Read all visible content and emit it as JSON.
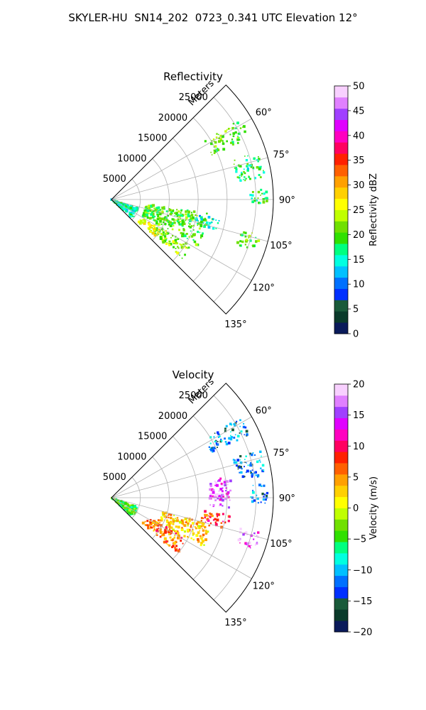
{
  "figure_title": "SKYLER-HU  SN14_202  0723_0.341 UTC Elevation 12°",
  "chart_data": [
    {
      "type": "heatmap",
      "projection": "polar-sector",
      "title": "Reflectivity",
      "radial_label": "Meters",
      "radial_ticks": [
        5000,
        10000,
        15000,
        20000,
        25000
      ],
      "r_max": 28000,
      "theta_range_deg": [
        45,
        135
      ],
      "theta_ticks_deg": [
        60,
        75,
        90,
        105,
        120,
        135
      ],
      "theta_tick_labels": [
        "60°",
        "75°",
        "90°",
        "105°",
        "120°",
        "135°"
      ],
      "radial_tick_labels": [
        "5000",
        "10000",
        "15000",
        "20000",
        "25000"
      ],
      "grid": true,
      "colorbar": {
        "label": "Reflectivity dBZ",
        "min": 0,
        "max": 50,
        "ticks": [
          0,
          5,
          10,
          15,
          20,
          25,
          30,
          35,
          40,
          45,
          50
        ],
        "tick_labels": [
          "0",
          "5",
          "10",
          "15",
          "20",
          "25",
          "30",
          "35",
          "40",
          "45",
          "50"
        ],
        "colors": [
          "#0a1a5a",
          "#0a3a2a",
          "#1a5a3a",
          "#0030ff",
          "#0070ff",
          "#00c0ff",
          "#00ffe0",
          "#00ff80",
          "#30e000",
          "#70e000",
          "#c0ff00",
          "#ffff00",
          "#ffd000",
          "#ffa000",
          "#ff6000",
          "#ff2000",
          "#ff0060",
          "#ff00c0",
          "#e000ff",
          "#a040ff",
          "#e080ff",
          "#f8d0ff"
        ]
      },
      "echo_regions": [
        {
          "theta_deg": [
            58,
            66
          ],
          "range_m": [
            19000,
            26500
          ],
          "value": 20
        },
        {
          "theta_deg": [
            72,
            82
          ],
          "range_m": [
            22000,
            27000
          ],
          "value": 17
        },
        {
          "theta_deg": [
            85,
            92
          ],
          "range_m": [
            24000,
            27000
          ],
          "value": 18
        },
        {
          "theta_deg": [
            103,
            110
          ],
          "range_m": [
            23000,
            26500
          ],
          "value": 20
        },
        {
          "theta_deg": [
            98,
            118
          ],
          "range_m": [
            6000,
            17000
          ],
          "value": 20
        },
        {
          "theta_deg": [
            120,
            130
          ],
          "range_m": [
            8000,
            16000
          ],
          "value": 22
        },
        {
          "theta_deg": [
            108,
            132
          ],
          "range_m": [
            0,
            5000
          ],
          "value": 16
        },
        {
          "theta_deg": [
            122,
            130
          ],
          "range_m": [
            6000,
            10000
          ],
          "value": 27
        },
        {
          "theta_deg": [
            100,
            106
          ],
          "range_m": [
            15000,
            19000
          ],
          "value": 15
        }
      ]
    },
    {
      "type": "heatmap",
      "projection": "polar-sector",
      "title": "Velocity",
      "radial_label": "Meters",
      "radial_ticks": [
        5000,
        10000,
        15000,
        20000,
        25000
      ],
      "r_max": 28000,
      "theta_range_deg": [
        45,
        135
      ],
      "theta_ticks_deg": [
        60,
        75,
        90,
        105,
        120,
        135
      ],
      "theta_tick_labels": [
        "60°",
        "75°",
        "90°",
        "105°",
        "120°",
        "135°"
      ],
      "radial_tick_labels": [
        "5000",
        "10000",
        "15000",
        "20000",
        "25000"
      ],
      "grid": true,
      "colorbar": {
        "label": "Velocity (m/s)",
        "min": -20,
        "max": 20,
        "ticks": [
          -20,
          -15,
          -10,
          -5,
          0,
          5,
          10,
          15,
          20
        ],
        "tick_labels": [
          "−20",
          "−15",
          "−10",
          "−5",
          "0",
          "5",
          "10",
          "15",
          "20"
        ],
        "colors": [
          "#0a1a5a",
          "#0a3a2a",
          "#1a5a3a",
          "#0030ff",
          "#0070ff",
          "#00c0ff",
          "#00ffe0",
          "#00ff80",
          "#30e000",
          "#70e000",
          "#c0ff00",
          "#ffff00",
          "#ffd000",
          "#ffa000",
          "#ff6000",
          "#ff2000",
          "#ff0060",
          "#ff00c0",
          "#e000ff",
          "#a040ff",
          "#e080ff",
          "#f8d0ff"
        ]
      },
      "echo_regions": [
        {
          "theta_deg": [
            58,
            66
          ],
          "range_m": [
            19000,
            26500
          ],
          "value": -12
        },
        {
          "theta_deg": [
            72,
            82
          ],
          "range_m": [
            22000,
            27000
          ],
          "value": -12
        },
        {
          "theta_deg": [
            85,
            92
          ],
          "range_m": [
            24000,
            27000
          ],
          "value": -12
        },
        {
          "theta_deg": [
            98,
            105
          ],
          "range_m": [
            16000,
            21000
          ],
          "value": 8
        },
        {
          "theta_deg": [
            105,
            118
          ],
          "range_m": [
            9000,
            18000
          ],
          "value": 3
        },
        {
          "theta_deg": [
            118,
            130
          ],
          "range_m": [
            7000,
            15000
          ],
          "value": 6
        },
        {
          "theta_deg": [
            108,
            132
          ],
          "range_m": [
            0,
            5000
          ],
          "value": -4
        },
        {
          "theta_deg": [
            80,
            95
          ],
          "range_m": [
            17000,
            21000
          ],
          "value": 16
        },
        {
          "theta_deg": [
            103,
            110
          ],
          "range_m": [
            23000,
            26500
          ],
          "value": 16
        }
      ]
    }
  ]
}
